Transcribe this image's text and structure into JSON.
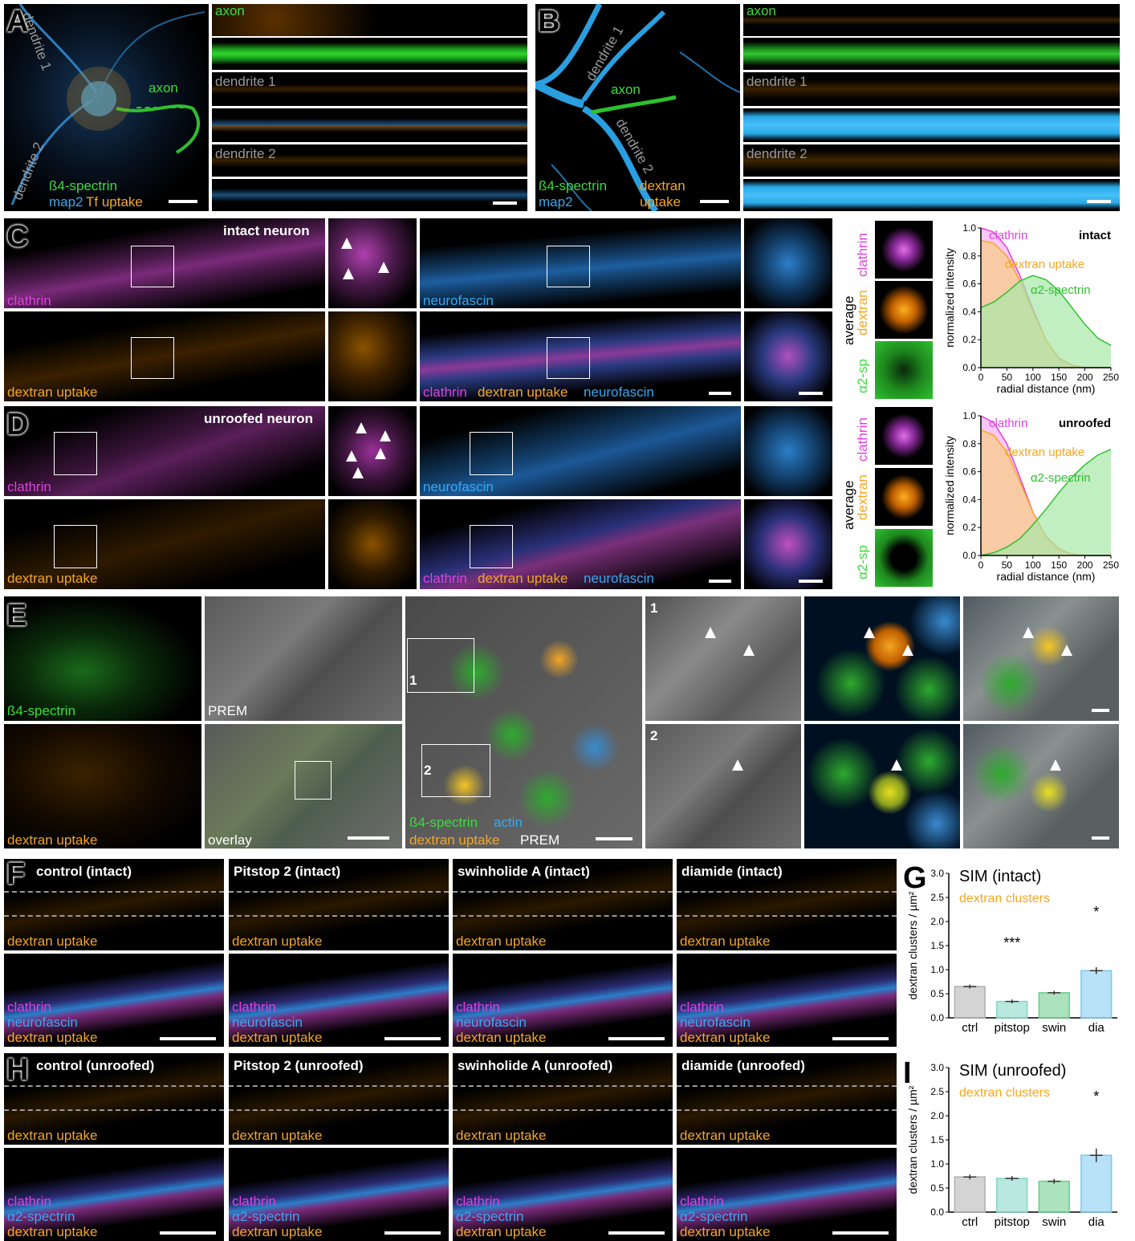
{
  "panel_labels": [
    "A",
    "B",
    "C",
    "D",
    "E",
    "F",
    "G",
    "H",
    "I"
  ],
  "A": {
    "overview_labels": {
      "dendrite1": "dendrite 1",
      "dendrite2": "dendrite 2",
      "axon": "axon",
      "ch1": "ß4-spectrin",
      "ch2": "map2",
      "ch3": "Tf uptake"
    },
    "strips": [
      "axon",
      "dendrite 1",
      "dendrite 2"
    ]
  },
  "B": {
    "overview_labels": {
      "dendrite1": "dendrite 1",
      "dendrite2": "dendrite 2",
      "axon": "axon",
      "ch1": "ß4-spectrin",
      "ch2": "map2",
      "ch3a": "dextran",
      "ch3b": "uptake"
    },
    "strips": [
      "axon",
      "dendrite 1",
      "dendrite 2"
    ]
  },
  "C": {
    "title": "intact neuron",
    "labels": {
      "clathrin": "clathrin",
      "dextran": "dextran uptake",
      "neurofascin": "neurofascin"
    },
    "average": "average",
    "avg_labels": [
      "clathrin",
      "dextran",
      "α2-sp"
    ]
  },
  "D": {
    "title": "unroofed neuron",
    "labels": {
      "clathrin": "clathrin",
      "dextran": "dextran uptake",
      "neurofascin": "neurofascin"
    },
    "average": "average",
    "avg_labels": [
      "clathrin",
      "dextran",
      "α2-sp"
    ]
  },
  "E": {
    "labels": {
      "spectrin": "ß4-spectrin",
      "prem": "PREM",
      "dextran": "dextran uptake",
      "overlay": "overlay",
      "c1": "ß4-spectrin",
      "c2": "actin",
      "c3": "dextran uptake",
      "c4": "PREM",
      "n1": "1",
      "n2": "2"
    }
  },
  "F": {
    "conditions": [
      "control (intact)",
      "Pitstop 2 (intact)",
      "swinholide A (intact)",
      "diamide (intact)"
    ],
    "top_label": "dextran uptake",
    "bottom_labels": [
      "clathrin",
      "neurofascin",
      "dextran uptake"
    ]
  },
  "H": {
    "conditions": [
      "control (unroofed)",
      "Pitstop 2 (unroofed)",
      "swinholide A (unroofed)",
      "diamide (unroofed)"
    ],
    "top_label": "dextran uptake",
    "bottom_labels": [
      "clathrin",
      "α2-spectrin",
      "dextran uptake"
    ]
  },
  "chart_data": [
    {
      "type": "area",
      "panel": "C",
      "title": "intact",
      "xlabel": "radial distance (nm)",
      "ylabel": "normalized intensity",
      "xlim": [
        0,
        250
      ],
      "ylim": [
        0,
        1.0
      ],
      "xticks": [
        0,
        50,
        100,
        150,
        200,
        250
      ],
      "yticks": [
        0.0,
        0.2,
        0.4,
        0.6,
        0.8,
        1.0
      ],
      "x": [
        0,
        25,
        50,
        75,
        100,
        125,
        150,
        175,
        200,
        225,
        250
      ],
      "series": [
        {
          "name": "clathrin",
          "values": [
            1.0,
            0.97,
            0.86,
            0.66,
            0.42,
            0.2,
            0.06,
            0.01,
            0.0,
            0.0,
            0.0
          ]
        },
        {
          "name": "dextran uptake",
          "values": [
            0.91,
            0.89,
            0.8,
            0.62,
            0.4,
            0.2,
            0.07,
            0.02,
            0.0,
            0.0,
            0.0
          ]
        },
        {
          "name": "α2-spectrin",
          "values": [
            0.43,
            0.47,
            0.54,
            0.62,
            0.66,
            0.63,
            0.55,
            0.43,
            0.31,
            0.21,
            0.16
          ]
        }
      ]
    },
    {
      "type": "area",
      "panel": "D",
      "title": "unroofed",
      "xlabel": "radial distance (nm)",
      "ylabel": "normalized intensity",
      "xlim": [
        0,
        250
      ],
      "ylim": [
        0,
        1.0
      ],
      "xticks": [
        0,
        50,
        100,
        150,
        200,
        250
      ],
      "yticks": [
        0.0,
        0.2,
        0.4,
        0.6,
        0.8,
        1.0
      ],
      "x": [
        0,
        25,
        50,
        75,
        100,
        125,
        150,
        175,
        200,
        225,
        250
      ],
      "series": [
        {
          "name": "clathrin",
          "values": [
            1.0,
            0.95,
            0.8,
            0.56,
            0.31,
            0.13,
            0.04,
            0.01,
            0.0,
            0.0,
            0.0
          ]
        },
        {
          "name": "dextran uptake",
          "values": [
            0.9,
            0.86,
            0.74,
            0.53,
            0.31,
            0.14,
            0.05,
            0.01,
            0.0,
            0.0,
            0.0
          ]
        },
        {
          "name": "α2-spectrin",
          "values": [
            0.0,
            0.02,
            0.06,
            0.12,
            0.22,
            0.33,
            0.45,
            0.56,
            0.65,
            0.72,
            0.76
          ]
        }
      ]
    },
    {
      "type": "bar",
      "panel": "G",
      "title": "SIM (intact)",
      "subtitle": "dextran clusters",
      "ylabel": "dextran clusters / µm²",
      "ylim": [
        0,
        3.0
      ],
      "yticks": [
        0.0,
        0.5,
        1.0,
        1.5,
        2.0,
        2.5,
        3.0
      ],
      "categories": [
        "ctrl",
        "pitstop",
        "swin",
        "dia"
      ],
      "values": [
        0.65,
        0.34,
        0.52,
        0.98
      ],
      "sem": [
        0.04,
        0.04,
        0.04,
        0.07
      ],
      "significance": [
        "",
        "***",
        "",
        "*"
      ],
      "colors": [
        "#b0b0b0",
        "#7fd6c4",
        "#66cc88",
        "#7cc8ee"
      ]
    },
    {
      "type": "bar",
      "panel": "I",
      "title": "SIM (unroofed)",
      "subtitle": "dextran clusters",
      "ylabel": "dextran clusters / µm²",
      "ylim": [
        0,
        3.0
      ],
      "yticks": [
        0.0,
        0.5,
        1.0,
        1.5,
        2.0,
        2.5,
        3.0
      ],
      "categories": [
        "ctrl",
        "pitstop",
        "swin",
        "dia"
      ],
      "values": [
        0.73,
        0.7,
        0.64,
        1.18
      ],
      "sem": [
        0.05,
        0.05,
        0.05,
        0.14
      ],
      "significance": [
        "",
        "",
        "",
        "*"
      ],
      "colors": [
        "#b0b0b0",
        "#7fd6c4",
        "#66cc88",
        "#7cc8ee"
      ]
    }
  ],
  "colors": {
    "green": "#3ddc3d",
    "blue": "#38a8f0",
    "orange": "#f5a623",
    "magenta": "#e040e0",
    "grey": "#9a9a9a"
  }
}
